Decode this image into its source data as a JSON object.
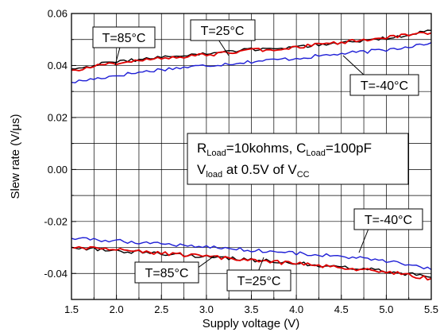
{
  "chart_data": {
    "type": "line",
    "xlabel": "Supply voltage (V)",
    "ylabel": "Slew rate (V/μs)",
    "xlim": [
      1.5,
      5.5
    ],
    "ylim": [
      -0.05,
      0.06
    ],
    "xticks": [
      "1.5",
      "2.0",
      "2.5",
      "3.0",
      "3.5",
      "4.0",
      "4.5",
      "5.0",
      "5.5"
    ],
    "yticks": [
      "0.06",
      "0.04",
      "0.02",
      "0.00",
      "-0.02",
      "-0.04"
    ],
    "grid": true,
    "colors": {
      "85": "#000000",
      "25": "#e00000",
      "-40": "#1f1fd6"
    },
    "x": [
      1.5,
      2.0,
      2.5,
      3.0,
      3.5,
      4.0,
      4.5,
      5.0,
      5.5
    ],
    "series": [
      {
        "temp": "85",
        "polarity": "rise",
        "values": [
          0.0387,
          0.0415,
          0.0432,
          0.0445,
          0.0461,
          0.0472,
          0.0488,
          0.0505,
          0.0535
        ]
      },
      {
        "temp": "25",
        "polarity": "rise",
        "values": [
          0.0382,
          0.041,
          0.0428,
          0.044,
          0.0458,
          0.047,
          0.049,
          0.0508,
          0.0525
        ]
      },
      {
        "temp": "-40",
        "polarity": "rise",
        "values": [
          0.0335,
          0.0362,
          0.0385,
          0.04,
          0.0415,
          0.0428,
          0.0445,
          0.046,
          0.0488
        ]
      },
      {
        "temp": "85",
        "polarity": "fall",
        "values": [
          -0.03,
          -0.0312,
          -0.0325,
          -0.0335,
          -0.0348,
          -0.036,
          -0.0375,
          -0.039,
          -0.0415
        ]
      },
      {
        "temp": "25",
        "polarity": "fall",
        "values": [
          -0.03,
          -0.031,
          -0.0322,
          -0.0335,
          -0.035,
          -0.0362,
          -0.0378,
          -0.0393,
          -0.042
        ]
      },
      {
        "temp": "-40",
        "polarity": "fall",
        "values": [
          -0.0265,
          -0.0275,
          -0.0285,
          -0.0298,
          -0.031,
          -0.0322,
          -0.0335,
          -0.0352,
          -0.0385
        ]
      }
    ],
    "annotations": {
      "t85_top": "T=85°C",
      "t25_top": "T=25°C",
      "t40_top": "T=-40°C",
      "t40_bottom": "T=-40°C",
      "t85_bottom": "T=85°C",
      "t25_bottom": "T=25°C"
    },
    "condition": {
      "line1_r": "R",
      "line1_r_sub": "Load",
      "line1_mid": "=10kohms, C",
      "line1_c_sub": "Load",
      "line1_end": "=100pF",
      "line2_v": "V",
      "line2_v_sub": "load",
      "line2_mid": " at 0.5V of V",
      "line2_cc_sub": "CC"
    }
  }
}
